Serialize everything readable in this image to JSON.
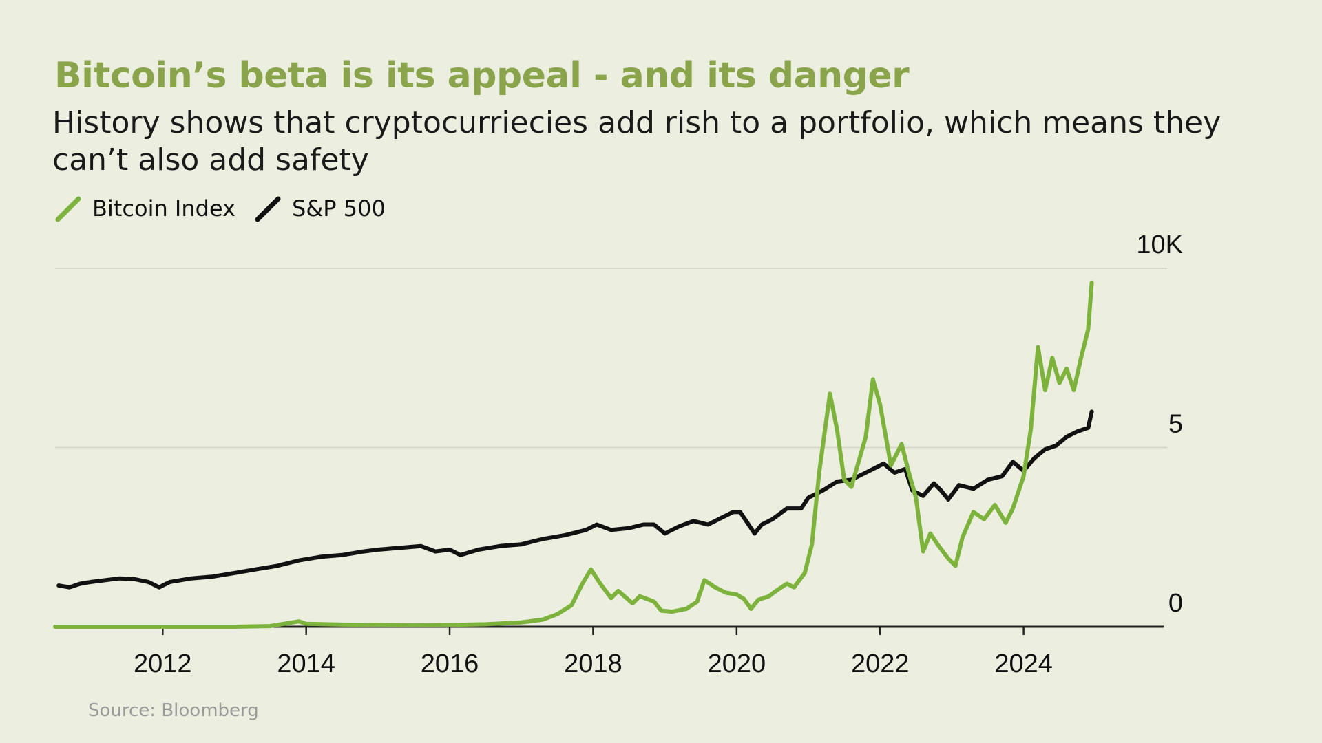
{
  "title": "Bitcoin’s beta is its appeal - and its danger",
  "subtitle": "History shows that cryptocurriecies add rish to a portfolio, which means they can’t also add safety",
  "source": "Source: Bloomberg",
  "colors": {
    "bitcoin": "#7db33c",
    "sp500": "#111111",
    "title": "#8aa44c",
    "background": "#eceedf"
  },
  "chart_data": {
    "type": "line",
    "xlim": [
      2010.5,
      2026.0
    ],
    "ylim": [
      0,
      10
    ],
    "x_ticks": [
      2012,
      2014,
      2016,
      2018,
      2020,
      2022,
      2024
    ],
    "x_tick_labels": [
      "2012",
      "2014",
      "2016",
      "2018",
      "2020",
      "2022",
      "2024"
    ],
    "y_ticks": [
      0,
      5,
      10
    ],
    "y_tick_labels": [
      "0",
      "5",
      "10K"
    ],
    "grid": "horizontal",
    "legend_position": "top-left",
    "series": [
      {
        "name": "Bitcoin Index",
        "color": "#7db33c",
        "points": [
          [
            2010.5,
            0
          ],
          [
            2012.0,
            0
          ],
          [
            2013.0,
            0
          ],
          [
            2013.5,
            0.02
          ],
          [
            2013.9,
            0.15
          ],
          [
            2014.0,
            0.08
          ],
          [
            2014.5,
            0.06
          ],
          [
            2015.0,
            0.05
          ],
          [
            2015.5,
            0.04
          ],
          [
            2016.0,
            0.05
          ],
          [
            2016.5,
            0.07
          ],
          [
            2017.0,
            0.12
          ],
          [
            2017.3,
            0.2
          ],
          [
            2017.5,
            0.35
          ],
          [
            2017.7,
            0.6
          ],
          [
            2017.85,
            1.2
          ],
          [
            2017.97,
            1.6
          ],
          [
            2018.1,
            1.2
          ],
          [
            2018.25,
            0.8
          ],
          [
            2018.35,
            1.0
          ],
          [
            2018.55,
            0.65
          ],
          [
            2018.65,
            0.85
          ],
          [
            2018.85,
            0.7
          ],
          [
            2018.95,
            0.45
          ],
          [
            2019.1,
            0.42
          ],
          [
            2019.3,
            0.5
          ],
          [
            2019.45,
            0.7
          ],
          [
            2019.55,
            1.3
          ],
          [
            2019.7,
            1.1
          ],
          [
            2019.85,
            0.95
          ],
          [
            2020.0,
            0.9
          ],
          [
            2020.1,
            0.78
          ],
          [
            2020.2,
            0.5
          ],
          [
            2020.3,
            0.75
          ],
          [
            2020.45,
            0.85
          ],
          [
            2020.55,
            1.0
          ],
          [
            2020.7,
            1.2
          ],
          [
            2020.8,
            1.1
          ],
          [
            2020.95,
            1.5
          ],
          [
            2021.05,
            2.3
          ],
          [
            2021.15,
            4.3
          ],
          [
            2021.3,
            6.5
          ],
          [
            2021.4,
            5.5
          ],
          [
            2021.5,
            4.1
          ],
          [
            2021.6,
            3.9
          ],
          [
            2021.8,
            5.3
          ],
          [
            2021.9,
            6.9
          ],
          [
            2022.0,
            6.2
          ],
          [
            2022.15,
            4.5
          ],
          [
            2022.3,
            5.1
          ],
          [
            2022.4,
            4.3
          ],
          [
            2022.5,
            3.6
          ],
          [
            2022.6,
            2.1
          ],
          [
            2022.7,
            2.6
          ],
          [
            2022.8,
            2.3
          ],
          [
            2022.95,
            1.9
          ],
          [
            2023.05,
            1.7
          ],
          [
            2023.15,
            2.5
          ],
          [
            2023.3,
            3.2
          ],
          [
            2023.45,
            3.0
          ],
          [
            2023.6,
            3.4
          ],
          [
            2023.75,
            2.9
          ],
          [
            2023.85,
            3.3
          ],
          [
            2024.0,
            4.2
          ],
          [
            2024.1,
            5.5
          ],
          [
            2024.2,
            7.8
          ],
          [
            2024.3,
            6.6
          ],
          [
            2024.4,
            7.5
          ],
          [
            2024.5,
            6.8
          ],
          [
            2024.6,
            7.2
          ],
          [
            2024.7,
            6.6
          ],
          [
            2024.8,
            7.5
          ],
          [
            2024.9,
            8.3
          ],
          [
            2024.95,
            9.6
          ]
        ]
      },
      {
        "name": "S&P 500",
        "color": "#111111",
        "points": [
          [
            2010.55,
            1.15
          ],
          [
            2010.7,
            1.1
          ],
          [
            2010.85,
            1.2
          ],
          [
            2011.0,
            1.25
          ],
          [
            2011.2,
            1.3
          ],
          [
            2011.4,
            1.35
          ],
          [
            2011.6,
            1.33
          ],
          [
            2011.8,
            1.25
          ],
          [
            2011.95,
            1.1
          ],
          [
            2012.1,
            1.25
          ],
          [
            2012.4,
            1.35
          ],
          [
            2012.7,
            1.4
          ],
          [
            2013.0,
            1.5
          ],
          [
            2013.3,
            1.6
          ],
          [
            2013.6,
            1.7
          ],
          [
            2013.9,
            1.85
          ],
          [
            2014.2,
            1.95
          ],
          [
            2014.5,
            2.0
          ],
          [
            2014.8,
            2.1
          ],
          [
            2015.0,
            2.15
          ],
          [
            2015.3,
            2.2
          ],
          [
            2015.6,
            2.25
          ],
          [
            2015.8,
            2.1
          ],
          [
            2016.0,
            2.15
          ],
          [
            2016.15,
            2.0
          ],
          [
            2016.4,
            2.15
          ],
          [
            2016.7,
            2.25
          ],
          [
            2017.0,
            2.3
          ],
          [
            2017.3,
            2.45
          ],
          [
            2017.6,
            2.55
          ],
          [
            2017.9,
            2.7
          ],
          [
            2018.05,
            2.85
          ],
          [
            2018.25,
            2.7
          ],
          [
            2018.5,
            2.75
          ],
          [
            2018.7,
            2.85
          ],
          [
            2018.85,
            2.85
          ],
          [
            2019.0,
            2.6
          ],
          [
            2019.2,
            2.8
          ],
          [
            2019.4,
            2.95
          ],
          [
            2019.6,
            2.85
          ],
          [
            2019.8,
            3.05
          ],
          [
            2019.95,
            3.2
          ],
          [
            2020.05,
            3.2
          ],
          [
            2020.25,
            2.6
          ],
          [
            2020.35,
            2.85
          ],
          [
            2020.5,
            3.0
          ],
          [
            2020.7,
            3.3
          ],
          [
            2020.9,
            3.3
          ],
          [
            2021.0,
            3.6
          ],
          [
            2021.2,
            3.8
          ],
          [
            2021.4,
            4.05
          ],
          [
            2021.6,
            4.1
          ],
          [
            2021.8,
            4.3
          ],
          [
            2021.95,
            4.45
          ],
          [
            2022.05,
            4.55
          ],
          [
            2022.2,
            4.3
          ],
          [
            2022.35,
            4.4
          ],
          [
            2022.45,
            3.8
          ],
          [
            2022.6,
            3.65
          ],
          [
            2022.75,
            4.0
          ],
          [
            2022.85,
            3.8
          ],
          [
            2022.95,
            3.55
          ],
          [
            2023.1,
            3.95
          ],
          [
            2023.3,
            3.85
          ],
          [
            2023.5,
            4.1
          ],
          [
            2023.7,
            4.2
          ],
          [
            2023.85,
            4.6
          ],
          [
            2024.0,
            4.35
          ],
          [
            2024.15,
            4.7
          ],
          [
            2024.3,
            4.95
          ],
          [
            2024.45,
            5.05
          ],
          [
            2024.6,
            5.3
          ],
          [
            2024.75,
            5.45
          ],
          [
            2024.9,
            5.55
          ],
          [
            2024.95,
            6.0
          ]
        ]
      }
    ]
  }
}
